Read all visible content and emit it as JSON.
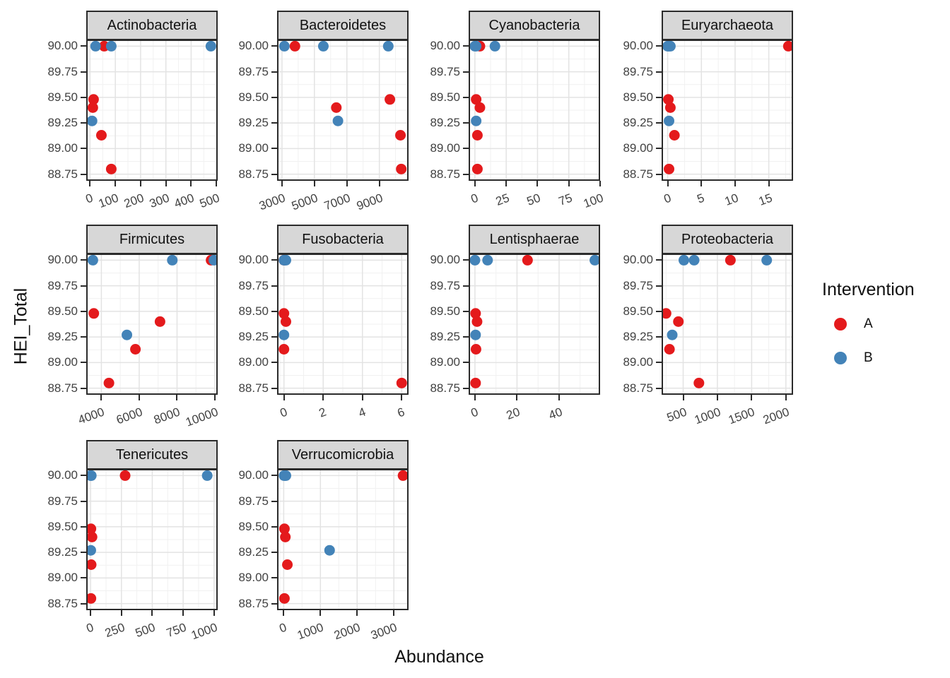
{
  "figure": {
    "background": "#FFFFFF"
  },
  "axis_titles": {
    "x": "Abundance",
    "y": "HEI_Total"
  },
  "legend": {
    "title": "Intervention",
    "items": [
      {
        "label": "A",
        "color": "#E41A1C"
      },
      {
        "label": "B",
        "color": "#4383B8"
      }
    ]
  },
  "style": {
    "strip_background": "#D7D7D7",
    "panel_border": "#2B2B2B",
    "grid_major": "#E3E3E3",
    "grid_minor": "#F1F1F1",
    "tick_text": "#424242",
    "point_red": "#E41A1C",
    "point_blue": "#4383B8"
  },
  "chart_data": {
    "type": "scatter",
    "title": "",
    "xlabel": "Abundance",
    "ylabel": "HEI_Total",
    "series_variable": "Intervention",
    "legend_position": "right",
    "grid": true,
    "y_axis": {
      "domain": [
        88.685,
        90.065
      ],
      "ticks": [
        {
          "value": 90.0,
          "label": "90.00"
        },
        {
          "value": 89.75,
          "label": "89.75"
        },
        {
          "value": 89.5,
          "label": "89.50"
        },
        {
          "value": 89.25,
          "label": "89.25"
        },
        {
          "value": 89.0,
          "label": "89.00"
        },
        {
          "value": 88.75,
          "label": "88.75"
        }
      ]
    },
    "facets": [
      {
        "title": "Actinobacteria",
        "x_domain": [
          -15,
          505
        ],
        "x_ticks": [
          {
            "value": 0,
            "label": "0"
          },
          {
            "value": 100,
            "label": "100"
          },
          {
            "value": 200,
            "label": "200"
          },
          {
            "value": 300,
            "label": "300"
          },
          {
            "value": 400,
            "label": "400"
          },
          {
            "value": 500,
            "label": "500"
          }
        ],
        "points": [
          {
            "x": 56,
            "y": 90.0,
            "group": "A"
          },
          {
            "x": 14,
            "y": 89.48,
            "group": "A"
          },
          {
            "x": 11,
            "y": 89.4,
            "group": "A"
          },
          {
            "x": 45,
            "y": 89.13,
            "group": "A"
          },
          {
            "x": 84,
            "y": 88.8,
            "group": "A"
          },
          {
            "x": 22,
            "y": 90.0,
            "group": "B"
          },
          {
            "x": 84,
            "y": 90.0,
            "group": "B"
          },
          {
            "x": 478,
            "y": 90.0,
            "group": "B"
          },
          {
            "x": 8,
            "y": 89.27,
            "group": "B"
          }
        ]
      },
      {
        "title": "Bacteroidetes",
        "x_domain": [
          2700,
          10800
        ],
        "x_ticks": [
          {
            "value": 3000,
            "label": "3000"
          },
          {
            "value": 5000,
            "label": "5000"
          },
          {
            "value": 7000,
            "label": "7000"
          },
          {
            "value": 9000,
            "label": "9000"
          }
        ],
        "points": [
          {
            "x": 3800,
            "y": 90.0,
            "group": "A"
          },
          {
            "x": 9650,
            "y": 89.48,
            "group": "A"
          },
          {
            "x": 6350,
            "y": 89.4,
            "group": "A"
          },
          {
            "x": 10300,
            "y": 89.13,
            "group": "A"
          },
          {
            "x": 10350,
            "y": 88.8,
            "group": "A"
          },
          {
            "x": 3150,
            "y": 90.0,
            "group": "B"
          },
          {
            "x": 5550,
            "y": 90.0,
            "group": "B"
          },
          {
            "x": 9550,
            "y": 90.0,
            "group": "B"
          },
          {
            "x": 6450,
            "y": 89.27,
            "group": "B"
          }
        ]
      },
      {
        "title": "Cyanobacteria",
        "x_domain": [
          -5,
          100
        ],
        "x_ticks": [
          {
            "value": 0,
            "label": "0"
          },
          {
            "value": 25,
            "label": "25"
          },
          {
            "value": 50,
            "label": "50"
          },
          {
            "value": 75,
            "label": "75"
          },
          {
            "value": 100,
            "label": "100"
          }
        ],
        "points": [
          {
            "x": 4,
            "y": 90.0,
            "group": "A"
          },
          {
            "x": 1,
            "y": 89.48,
            "group": "A"
          },
          {
            "x": 4,
            "y": 89.4,
            "group": "A"
          },
          {
            "x": 2,
            "y": 89.13,
            "group": "A"
          },
          {
            "x": 2,
            "y": 88.8,
            "group": "A"
          },
          {
            "x": 0,
            "y": 90.0,
            "group": "B"
          },
          {
            "x": 1,
            "y": 90.0,
            "group": "B"
          },
          {
            "x": 16,
            "y": 90.0,
            "group": "B"
          },
          {
            "x": 1,
            "y": 89.27,
            "group": "B"
          }
        ]
      },
      {
        "title": "Euryarchaeota",
        "x_domain": [
          -0.9,
          18.6
        ],
        "x_ticks": [
          {
            "value": 0,
            "label": "0"
          },
          {
            "value": 5,
            "label": "5"
          },
          {
            "value": 10,
            "label": "10"
          },
          {
            "value": 15,
            "label": "15"
          }
        ],
        "points": [
          {
            "x": 17.9,
            "y": 90.0,
            "group": "A"
          },
          {
            "x": 0.1,
            "y": 89.48,
            "group": "A"
          },
          {
            "x": 0.4,
            "y": 89.4,
            "group": "A"
          },
          {
            "x": 1.0,
            "y": 89.13,
            "group": "A"
          },
          {
            "x": 0.2,
            "y": 88.8,
            "group": "A"
          },
          {
            "x": 0,
            "y": 90.0,
            "group": "B"
          },
          {
            "x": 0.2,
            "y": 90.0,
            "group": "B"
          },
          {
            "x": 0.4,
            "y": 90.0,
            "group": "B"
          },
          {
            "x": 0.2,
            "y": 89.27,
            "group": "B"
          }
        ]
      },
      {
        "title": "Firmicutes",
        "x_domain": [
          3200,
          10150
        ],
        "x_ticks": [
          {
            "value": 4000,
            "label": "4000"
          },
          {
            "value": 6000,
            "label": "6000"
          },
          {
            "value": 8000,
            "label": "8000"
          },
          {
            "value": 10000,
            "label": "10000"
          }
        ],
        "points": [
          {
            "x": 9800,
            "y": 90.0,
            "group": "A"
          },
          {
            "x": 3600,
            "y": 89.48,
            "group": "A"
          },
          {
            "x": 7100,
            "y": 89.4,
            "group": "A"
          },
          {
            "x": 5800,
            "y": 89.13,
            "group": "A"
          },
          {
            "x": 4400,
            "y": 88.8,
            "group": "A"
          },
          {
            "x": 3550,
            "y": 90.0,
            "group": "B"
          },
          {
            "x": 7750,
            "y": 90.0,
            "group": "B"
          },
          {
            "x": 9950,
            "y": 90.0,
            "group": "B"
          },
          {
            "x": 5350,
            "y": 89.27,
            "group": "B"
          }
        ]
      },
      {
        "title": "Fusobacteria",
        "x_domain": [
          -0.35,
          6.35
        ],
        "x_ticks": [
          {
            "value": 0,
            "label": "0"
          },
          {
            "value": 2,
            "label": "2"
          },
          {
            "value": 4,
            "label": "4"
          },
          {
            "value": 6,
            "label": "6"
          }
        ],
        "points": [
          {
            "x": 0,
            "y": 90.0,
            "group": "A"
          },
          {
            "x": 0,
            "y": 89.48,
            "group": "A"
          },
          {
            "x": 0.1,
            "y": 89.4,
            "group": "A"
          },
          {
            "x": 0,
            "y": 89.13,
            "group": "A"
          },
          {
            "x": 6,
            "y": 88.8,
            "group": "A"
          },
          {
            "x": 0,
            "y": 90.0,
            "group": "B"
          },
          {
            "x": 0.05,
            "y": 90.0,
            "group": "B"
          },
          {
            "x": 0.1,
            "y": 90.0,
            "group": "B"
          },
          {
            "x": 0,
            "y": 89.27,
            "group": "B"
          }
        ]
      },
      {
        "title": "Lentisphaerae",
        "x_domain": [
          -3,
          59.5
        ],
        "x_ticks": [
          {
            "value": 0,
            "label": "0"
          },
          {
            "value": 20,
            "label": "20"
          },
          {
            "value": 40,
            "label": "40"
          }
        ],
        "points": [
          {
            "x": 25,
            "y": 90.0,
            "group": "A"
          },
          {
            "x": 0.3,
            "y": 89.48,
            "group": "A"
          },
          {
            "x": 1,
            "y": 89.4,
            "group": "A"
          },
          {
            "x": 0.5,
            "y": 89.13,
            "group": "A"
          },
          {
            "x": 0.3,
            "y": 88.8,
            "group": "A"
          },
          {
            "x": 0,
            "y": 90.0,
            "group": "B"
          },
          {
            "x": 6,
            "y": 90.0,
            "group": "B"
          },
          {
            "x": 57,
            "y": 90.0,
            "group": "B"
          },
          {
            "x": 0.3,
            "y": 89.27,
            "group": "B"
          }
        ]
      },
      {
        "title": "Proteobacteria",
        "x_domain": [
          185,
          2105
        ],
        "x_ticks": [
          {
            "value": 500,
            "label": "500"
          },
          {
            "value": 1000,
            "label": "1000"
          },
          {
            "value": 1500,
            "label": "1500"
          },
          {
            "value": 2000,
            "label": "2000"
          }
        ],
        "points": [
          {
            "x": 1190,
            "y": 90.0,
            "group": "A"
          },
          {
            "x": 250,
            "y": 89.48,
            "group": "A"
          },
          {
            "x": 430,
            "y": 89.4,
            "group": "A"
          },
          {
            "x": 300,
            "y": 89.13,
            "group": "A"
          },
          {
            "x": 730,
            "y": 88.8,
            "group": "A"
          },
          {
            "x": 510,
            "y": 90.0,
            "group": "B"
          },
          {
            "x": 660,
            "y": 90.0,
            "group": "B"
          },
          {
            "x": 1720,
            "y": 90.0,
            "group": "B"
          },
          {
            "x": 340,
            "y": 89.27,
            "group": "B"
          }
        ]
      },
      {
        "title": "Tenericutes",
        "x_domain": [
          -35,
          1030
        ],
        "x_ticks": [
          {
            "value": 0,
            "label": "0"
          },
          {
            "value": 250,
            "label": "250"
          },
          {
            "value": 500,
            "label": "500"
          },
          {
            "value": 750,
            "label": "750"
          },
          {
            "value": 1000,
            "label": "1000"
          }
        ],
        "points": [
          {
            "x": 280,
            "y": 90.0,
            "group": "A"
          },
          {
            "x": 3,
            "y": 89.48,
            "group": "A"
          },
          {
            "x": 12,
            "y": 89.4,
            "group": "A"
          },
          {
            "x": 5,
            "y": 89.13,
            "group": "A"
          },
          {
            "x": 3,
            "y": 88.8,
            "group": "A"
          },
          {
            "x": 0,
            "y": 90.0,
            "group": "B"
          },
          {
            "x": 6,
            "y": 90.0,
            "group": "B"
          },
          {
            "x": 945,
            "y": 90.0,
            "group": "B"
          },
          {
            "x": 2,
            "y": 89.27,
            "group": "B"
          }
        ]
      },
      {
        "title": "Verrucomicrobia",
        "x_domain": [
          -180,
          3400
        ],
        "x_ticks": [
          {
            "value": 0,
            "label": "0"
          },
          {
            "value": 1000,
            "label": "1000"
          },
          {
            "value": 2000,
            "label": "2000"
          },
          {
            "value": 3000,
            "label": "3000"
          }
        ],
        "points": [
          {
            "x": 3250,
            "y": 90.0,
            "group": "A"
          },
          {
            "x": 20,
            "y": 89.48,
            "group": "A"
          },
          {
            "x": 45,
            "y": 89.4,
            "group": "A"
          },
          {
            "x": 100,
            "y": 89.13,
            "group": "A"
          },
          {
            "x": 20,
            "y": 88.8,
            "group": "A"
          },
          {
            "x": 10,
            "y": 90.0,
            "group": "B"
          },
          {
            "x": 35,
            "y": 90.0,
            "group": "B"
          },
          {
            "x": 60,
            "y": 90.0,
            "group": "B"
          },
          {
            "x": 1250,
            "y": 89.27,
            "group": "B"
          }
        ]
      }
    ]
  }
}
